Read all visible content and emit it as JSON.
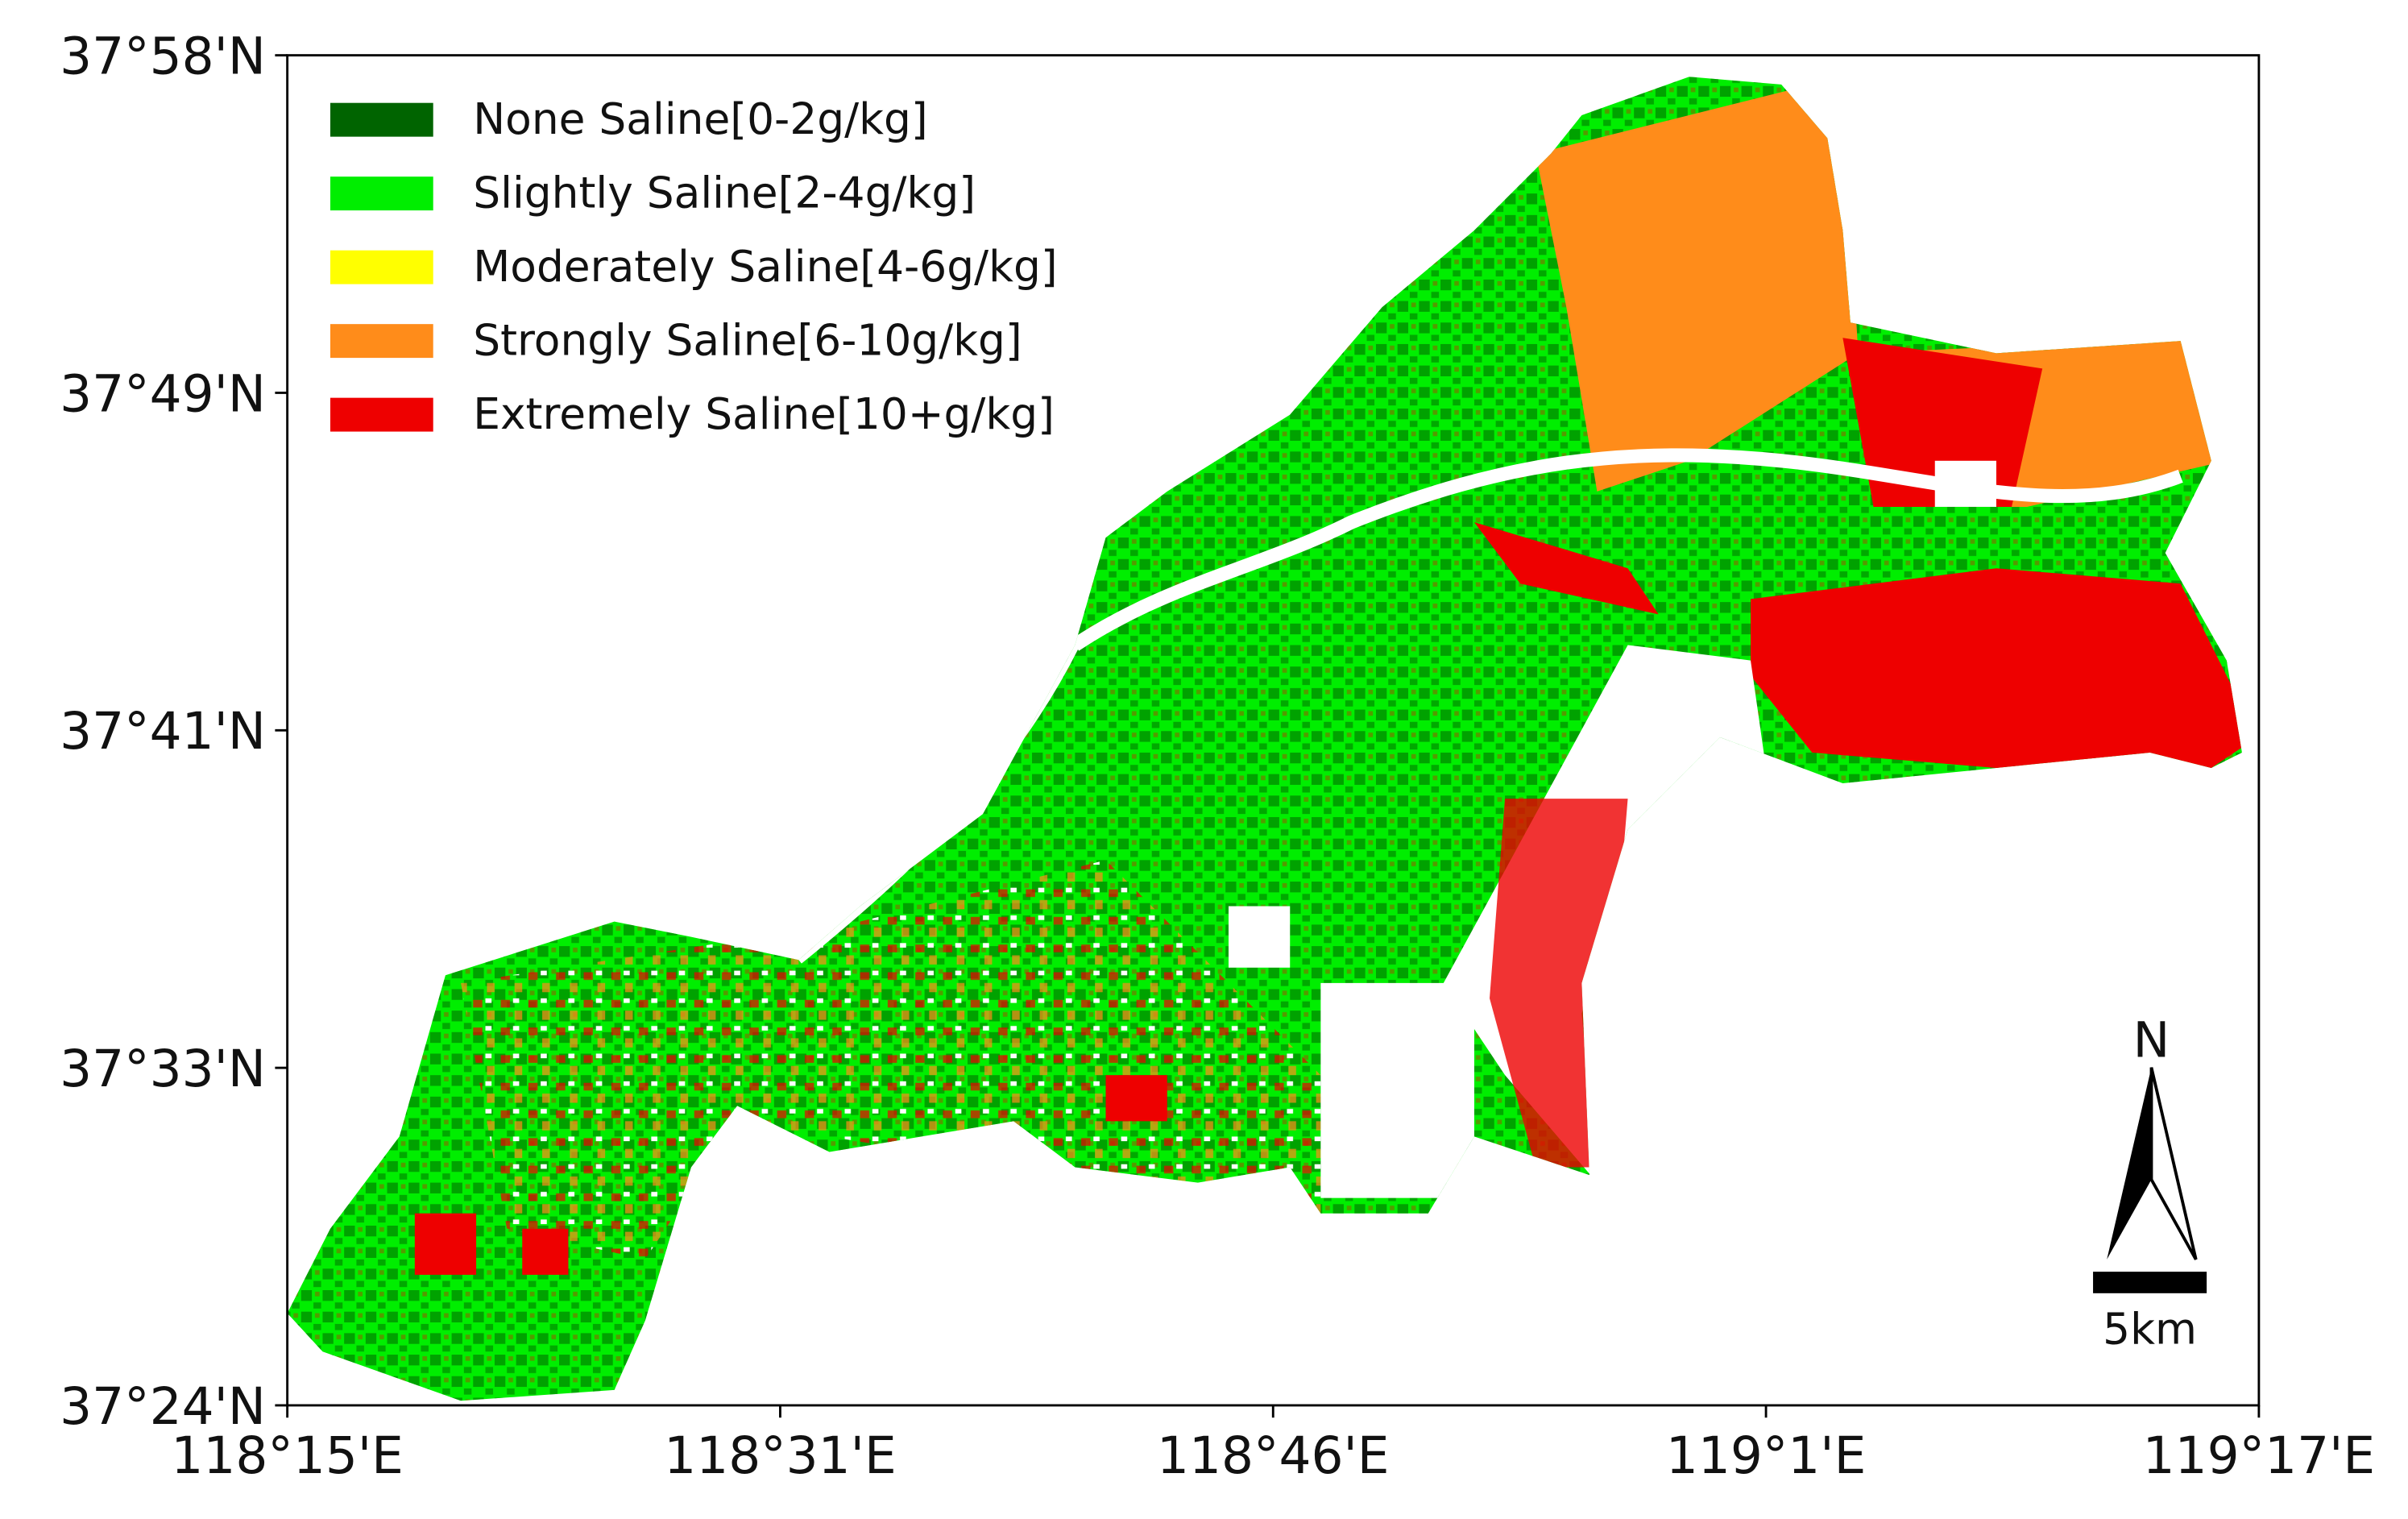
{
  "map": {
    "lat_ticks": [
      "37°58'N",
      "37°49'N",
      "37°41'N",
      "37°33'N",
      "37°24'N"
    ],
    "lon_ticks": [
      "118°15'E",
      "118°31'E",
      "118°46'E",
      "119°1'E",
      "119°17'E"
    ],
    "legend": [
      {
        "label": "None Saline[0-2g/kg]",
        "color": "#006400"
      },
      {
        "label": "Slightly Saline[2-4g/kg]",
        "color": "#00ee00"
      },
      {
        "label": "Moderately Saline[4-6g/kg]",
        "color": "#ffff00"
      },
      {
        "label": "Strongly Saline[6-10g/kg]",
        "color": "#ff8c1a"
      },
      {
        "label": "Extremely Saline[10+g/kg]",
        "color": "#ee0000"
      }
    ],
    "north_label": "N",
    "scale_label": "5km"
  }
}
